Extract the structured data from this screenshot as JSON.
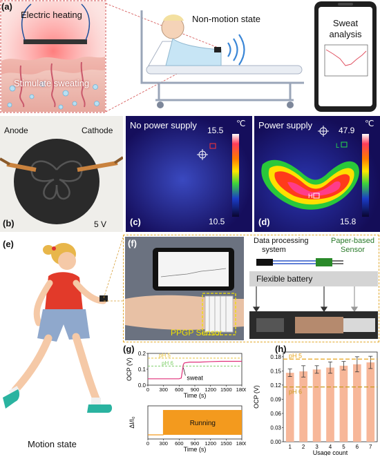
{
  "panel_a": {
    "letter": "(a)",
    "heating_label": "Electric heating",
    "sweating_label": "Stimulate sweating",
    "state_label": "Non-motion state",
    "phone_title_line1": "Sweat",
    "phone_title_line2": "analysis"
  },
  "panel_b": {
    "letter": "(b)",
    "anode": "Anode",
    "cathode": "Cathode",
    "voltage": "5 V"
  },
  "panel_c": {
    "letter": "(c)",
    "title": "No power supply",
    "unit": "℃",
    "max_temp": "15.5",
    "min_temp": "10.5"
  },
  "panel_d": {
    "letter": "(d)",
    "title": "Power supply",
    "unit": "℃",
    "max_temp": "47.9",
    "min_temp": "15.8",
    "spot_label_l": "L",
    "spot_label_h": "H"
  },
  "panel_e": {
    "letter": "(e)",
    "state_label": "Motion state"
  },
  "panel_f": {
    "letter": "(f)",
    "sensor_label": "PPGP Sensor",
    "data_label_line1": "Data processing",
    "data_label_line2": "system",
    "paper_label_line1": "Paper-based",
    "paper_label_line2": "Sensor",
    "battery_label": "Flexible battery"
  },
  "chart_data": [
    {
      "panel": "(g)",
      "type": "line",
      "xlabel": "Time (s)",
      "ylabel": "OCP (V)",
      "x_ticks": [
        0,
        300,
        600,
        900,
        1200,
        1500,
        1800
      ],
      "y_ticks": [
        0.0,
        0.1,
        0.2
      ],
      "xlim": [
        0,
        1800
      ],
      "ylim": [
        0.0,
        0.2
      ],
      "reference_lines": [
        {
          "label": "pH 5",
          "value": 0.17,
          "color": "#e8c23a"
        },
        {
          "label": "pH 6",
          "value": 0.12,
          "color": "#7fcf6a"
        }
      ],
      "annotation": "sweat",
      "series": [
        {
          "x": [
            0,
            200,
            400,
            600,
            640,
            680,
            700,
            800,
            1000,
            1200,
            1400,
            1600,
            1800
          ],
          "y": [
            0.04,
            0.04,
            0.04,
            0.04,
            0.045,
            0.13,
            0.14,
            0.145,
            0.145,
            0.148,
            0.15,
            0.15,
            0.15
          ],
          "color": "#e0307a"
        }
      ]
    },
    {
      "panel": "(g)",
      "type": "area",
      "xlabel": "Time (s)",
      "ylabel": "ΔI/I₀",
      "x_ticks": [
        0,
        300,
        600,
        900,
        1200,
        1500,
        1800
      ],
      "xlim": [
        0,
        1800
      ],
      "annotation": "Running",
      "segment": {
        "start": 300,
        "end": 1800
      },
      "color": "#f39a1e"
    },
    {
      "panel": "(h)",
      "type": "bar",
      "xlabel": "Usage count",
      "ylabel": "OCP (V)",
      "categories": [
        "1",
        "2",
        "3",
        "4",
        "5",
        "6",
        "7"
      ],
      "values": [
        0.146,
        0.149,
        0.153,
        0.157,
        0.161,
        0.164,
        0.168
      ],
      "errors": [
        0.008,
        0.012,
        0.008,
        0.012,
        0.009,
        0.016,
        0.013
      ],
      "y_ticks": [
        0.0,
        0.03,
        0.06,
        0.09,
        0.12,
        0.15,
        0.18
      ],
      "y_tick_labels": [
        "0.00",
        "0.03",
        "0.06",
        "0.09",
        "0.12",
        "0.15",
        "0.18"
      ],
      "ylim": [
        0.0,
        0.19
      ],
      "reference_lines": [
        {
          "label": "pH 5",
          "value": 0.175,
          "color": "#e8a31a"
        },
        {
          "label": "pH 6",
          "value": 0.116,
          "color": "#c89a1a"
        }
      ],
      "bar_color": "#f7b799"
    }
  ]
}
